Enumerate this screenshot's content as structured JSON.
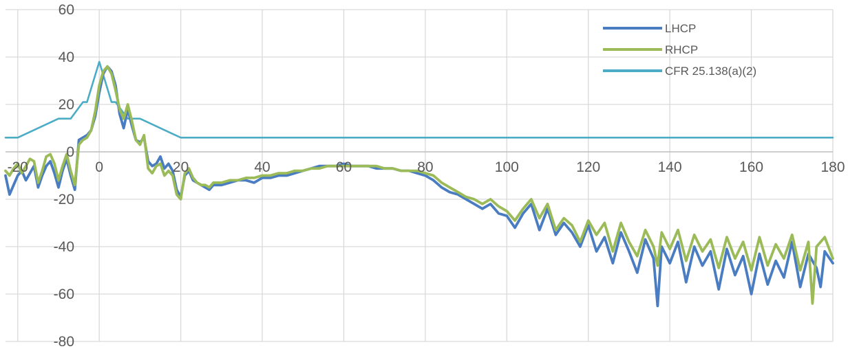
{
  "chart_data": {
    "type": "line",
    "title": "",
    "xlabel": "",
    "ylabel": "",
    "xlim": [
      -23,
      180
    ],
    "ylim": [
      -80,
      60
    ],
    "x_ticks": [
      -20,
      0,
      20,
      40,
      60,
      80,
      100,
      120,
      140,
      160,
      180
    ],
    "x_tick_labels": [
      "-20",
      "0",
      "20",
      "40",
      "60",
      "80",
      "100",
      "120",
      "140",
      "160",
      "180"
    ],
    "y_ticks": [
      60,
      40,
      20,
      0,
      -20,
      -40,
      -60,
      -80
    ],
    "y_tick_labels": [
      "60",
      "40",
      "20",
      "0",
      "-20",
      "-40",
      "-60",
      "-80"
    ],
    "grid": "vertical and horizontal",
    "legend_position": "top-right",
    "series": [
      {
        "name": "LHCP",
        "color": "#4a7cc2",
        "points": [
          [
            -23,
            -10
          ],
          [
            -22,
            -18
          ],
          [
            -21,
            -14
          ],
          [
            -20,
            -10
          ],
          [
            -19,
            -8
          ],
          [
            -18,
            -12
          ],
          [
            -17,
            -9
          ],
          [
            -16,
            -6
          ],
          [
            -15,
            -15
          ],
          [
            -14,
            -10
          ],
          [
            -13,
            -6
          ],
          [
            -12,
            -4
          ],
          [
            -11,
            -9
          ],
          [
            -10,
            -15
          ],
          [
            -9,
            -8
          ],
          [
            -8,
            -3
          ],
          [
            -7,
            -10
          ],
          [
            -6,
            -16
          ],
          [
            -5,
            5
          ],
          [
            -4,
            6
          ],
          [
            -3,
            7
          ],
          [
            -2,
            9
          ],
          [
            -1,
            15
          ],
          [
            0,
            25
          ],
          [
            1,
            33
          ],
          [
            2,
            36
          ],
          [
            3,
            34
          ],
          [
            4,
            28
          ],
          [
            5,
            16
          ],
          [
            6,
            10
          ],
          [
            7,
            18
          ],
          [
            8,
            11
          ],
          [
            9,
            5
          ],
          [
            10,
            4
          ],
          [
            11,
            6
          ],
          [
            12,
            -4
          ],
          [
            13,
            -6
          ],
          [
            14,
            -5
          ],
          [
            15,
            -2
          ],
          [
            16,
            -7
          ],
          [
            17,
            -5
          ],
          [
            18,
            -8
          ],
          [
            19,
            -16
          ],
          [
            20,
            -19
          ],
          [
            21,
            -10
          ],
          [
            22,
            -8
          ],
          [
            23,
            -12
          ],
          [
            24,
            -13
          ],
          [
            25,
            -14
          ],
          [
            26,
            -15
          ],
          [
            27,
            -16
          ],
          [
            28,
            -14
          ],
          [
            30,
            -14
          ],
          [
            32,
            -13
          ],
          [
            34,
            -12
          ],
          [
            36,
            -12
          ],
          [
            38,
            -13
          ],
          [
            40,
            -11
          ],
          [
            42,
            -11
          ],
          [
            44,
            -10
          ],
          [
            46,
            -10
          ],
          [
            48,
            -9
          ],
          [
            50,
            -8
          ],
          [
            52,
            -7
          ],
          [
            54,
            -6
          ],
          [
            56,
            -6
          ],
          [
            58,
            -6
          ],
          [
            60,
            -5
          ],
          [
            62,
            -6
          ],
          [
            64,
            -6
          ],
          [
            66,
            -6
          ],
          [
            68,
            -7
          ],
          [
            70,
            -7
          ],
          [
            72,
            -7
          ],
          [
            74,
            -8
          ],
          [
            76,
            -8
          ],
          [
            78,
            -9
          ],
          [
            80,
            -10
          ],
          [
            82,
            -12
          ],
          [
            84,
            -15
          ],
          [
            86,
            -17
          ],
          [
            88,
            -18
          ],
          [
            90,
            -20
          ],
          [
            92,
            -22
          ],
          [
            94,
            -24
          ],
          [
            96,
            -22
          ],
          [
            98,
            -26
          ],
          [
            100,
            -27
          ],
          [
            102,
            -32
          ],
          [
            104,
            -26
          ],
          [
            106,
            -22
          ],
          [
            108,
            -33
          ],
          [
            110,
            -24
          ],
          [
            112,
            -35
          ],
          [
            114,
            -30
          ],
          [
            116,
            -34
          ],
          [
            118,
            -40
          ],
          [
            120,
            -31
          ],
          [
            122,
            -42
          ],
          [
            124,
            -36
          ],
          [
            126,
            -47
          ],
          [
            128,
            -34
          ],
          [
            130,
            -42
          ],
          [
            132,
            -51
          ],
          [
            134,
            -37
          ],
          [
            136,
            -45
          ],
          [
            137,
            -65
          ],
          [
            138,
            -40
          ],
          [
            140,
            -47
          ],
          [
            142,
            -38
          ],
          [
            144,
            -55
          ],
          [
            146,
            -40
          ],
          [
            148,
            -48
          ],
          [
            150,
            -42
          ],
          [
            152,
            -58
          ],
          [
            154,
            -41
          ],
          [
            156,
            -52
          ],
          [
            158,
            -44
          ],
          [
            160,
            -60
          ],
          [
            162,
            -43
          ],
          [
            164,
            -56
          ],
          [
            166,
            -46
          ],
          [
            168,
            -53
          ],
          [
            170,
            -38
          ],
          [
            172,
            -57
          ],
          [
            174,
            -43
          ],
          [
            176,
            -49
          ],
          [
            177,
            -57
          ],
          [
            178,
            -42
          ],
          [
            180,
            -47
          ]
        ]
      },
      {
        "name": "RHCP",
        "color": "#9bbb59",
        "points": [
          [
            -23,
            -8
          ],
          [
            -22,
            -10
          ],
          [
            -21,
            -7
          ],
          [
            -20,
            -5
          ],
          [
            -19,
            -9
          ],
          [
            -18,
            -6
          ],
          [
            -17,
            -3
          ],
          [
            -16,
            -4
          ],
          [
            -15,
            -13
          ],
          [
            -14,
            -8
          ],
          [
            -13,
            -2
          ],
          [
            -12,
            -1
          ],
          [
            -11,
            -5
          ],
          [
            -10,
            -12
          ],
          [
            -9,
            -6
          ],
          [
            -8,
            -1
          ],
          [
            -7,
            -8
          ],
          [
            -6,
            -14
          ],
          [
            -5,
            3
          ],
          [
            -4,
            5
          ],
          [
            -3,
            6
          ],
          [
            -2,
            9
          ],
          [
            -1,
            17
          ],
          [
            0,
            28
          ],
          [
            1,
            34
          ],
          [
            2,
            36
          ],
          [
            3,
            33
          ],
          [
            4,
            26
          ],
          [
            5,
            18
          ],
          [
            6,
            14
          ],
          [
            7,
            20
          ],
          [
            8,
            13
          ],
          [
            9,
            5
          ],
          [
            10,
            3
          ],
          [
            11,
            7
          ],
          [
            12,
            -7
          ],
          [
            13,
            -9
          ],
          [
            14,
            -6
          ],
          [
            15,
            -5
          ],
          [
            16,
            -10
          ],
          [
            17,
            -8
          ],
          [
            18,
            -10
          ],
          [
            19,
            -18
          ],
          [
            20,
            -20
          ],
          [
            21,
            -9
          ],
          [
            22,
            -7
          ],
          [
            23,
            -11
          ],
          [
            24,
            -13
          ],
          [
            25,
            -14
          ],
          [
            26,
            -14
          ],
          [
            27,
            -15
          ],
          [
            28,
            -13
          ],
          [
            30,
            -13
          ],
          [
            32,
            -12
          ],
          [
            34,
            -12
          ],
          [
            36,
            -11
          ],
          [
            38,
            -11
          ],
          [
            40,
            -10
          ],
          [
            42,
            -10
          ],
          [
            44,
            -9
          ],
          [
            46,
            -9
          ],
          [
            48,
            -8
          ],
          [
            50,
            -8
          ],
          [
            52,
            -7
          ],
          [
            54,
            -7
          ],
          [
            56,
            -6
          ],
          [
            58,
            -6
          ],
          [
            60,
            -6
          ],
          [
            62,
            -6
          ],
          [
            64,
            -6
          ],
          [
            66,
            -6
          ],
          [
            68,
            -6
          ],
          [
            70,
            -7
          ],
          [
            72,
            -7
          ],
          [
            74,
            -8
          ],
          [
            76,
            -8
          ],
          [
            78,
            -8
          ],
          [
            80,
            -9
          ],
          [
            82,
            -10
          ],
          [
            84,
            -13
          ],
          [
            86,
            -15
          ],
          [
            88,
            -17
          ],
          [
            90,
            -19
          ],
          [
            92,
            -20
          ],
          [
            94,
            -22
          ],
          [
            96,
            -20
          ],
          [
            98,
            -23
          ],
          [
            100,
            -25
          ],
          [
            102,
            -29
          ],
          [
            104,
            -24
          ],
          [
            106,
            -20
          ],
          [
            108,
            -28
          ],
          [
            110,
            -22
          ],
          [
            112,
            -33
          ],
          [
            114,
            -28
          ],
          [
            116,
            -31
          ],
          [
            118,
            -38
          ],
          [
            120,
            -29
          ],
          [
            122,
            -35
          ],
          [
            124,
            -30
          ],
          [
            126,
            -42
          ],
          [
            128,
            -30
          ],
          [
            130,
            -38
          ],
          [
            132,
            -44
          ],
          [
            134,
            -33
          ],
          [
            136,
            -40
          ],
          [
            137,
            -48
          ],
          [
            138,
            -34
          ],
          [
            140,
            -41
          ],
          [
            142,
            -33
          ],
          [
            144,
            -46
          ],
          [
            146,
            -35
          ],
          [
            148,
            -42
          ],
          [
            150,
            -37
          ],
          [
            152,
            -49
          ],
          [
            154,
            -36
          ],
          [
            156,
            -45
          ],
          [
            158,
            -38
          ],
          [
            160,
            -50
          ],
          [
            162,
            -36
          ],
          [
            164,
            -48
          ],
          [
            166,
            -39
          ],
          [
            168,
            -45
          ],
          [
            170,
            -35
          ],
          [
            172,
            -50
          ],
          [
            174,
            -38
          ],
          [
            175,
            -64
          ],
          [
            176,
            -40
          ],
          [
            178,
            -36
          ],
          [
            180,
            -45
          ]
        ]
      },
      {
        "name": "CFR 25.138(a)(2)",
        "color": "#4bacc6",
        "points": [
          [
            -23,
            6
          ],
          [
            -20,
            6
          ],
          [
            -10,
            14
          ],
          [
            -7,
            14
          ],
          [
            -4,
            21
          ],
          [
            -3,
            21
          ],
          [
            0,
            38
          ],
          [
            3,
            21
          ],
          [
            4,
            21
          ],
          [
            7,
            14
          ],
          [
            10,
            14
          ],
          [
            20,
            6
          ],
          [
            180,
            6
          ]
        ]
      }
    ]
  }
}
